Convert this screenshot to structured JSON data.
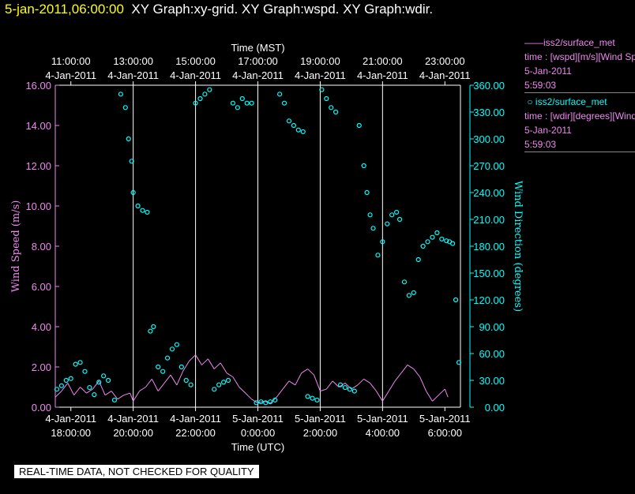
{
  "header": {
    "date_time": "5-jan-2011,06:00:00",
    "graph_titles": "XY Graph:xy-grid.  XY Graph:wspd.  XY Graph:wdir."
  },
  "legend": {
    "wspd": {
      "name": "iss2/surface_met",
      "desc": "time : [wspd][m/s][Wind Speed]",
      "date": "5-Jan-2011",
      "time": "5:59:03",
      "color": "#ee88ee"
    },
    "wdir": {
      "name": "iss2/surface_met",
      "desc": "time : [wdir][degrees][Wind Direction]",
      "date": "5-Jan-2011",
      "time": "5:59:03",
      "color": "#00ffff"
    }
  },
  "footer": {
    "qc_note": "REAL-TIME DATA, NOT CHECKED FOR QUALITY"
  },
  "colors": {
    "background": "#000000",
    "axis": "#ffffff",
    "wspd": "#ee88ee",
    "wdir": "#00ffff",
    "grid": "#ffffff",
    "header_date": "#ffff00"
  },
  "chart_data": {
    "type": "line",
    "top_axis_title": "Time (MST)",
    "bottom_axis_title": "Time (UTC)",
    "y_left_label": "Wind Speed (m/s)",
    "y_right_label": "Wind Direction (degrees)",
    "x_range_utc_hours": [
      17.5,
      30.5
    ],
    "bottom_ticks": [
      {
        "date": "4-Jan-2011",
        "time": "18:00:00",
        "h": 18
      },
      {
        "date": "4-Jan-2011",
        "time": "20:00:00",
        "h": 20
      },
      {
        "date": "4-Jan-2011",
        "time": "22:00:00",
        "h": 22
      },
      {
        "date": "5-Jan-2011",
        "time": "0:00:00",
        "h": 24
      },
      {
        "date": "5-Jan-2011",
        "time": "2:00:00",
        "h": 26
      },
      {
        "date": "5-Jan-2011",
        "time": "4:00:00",
        "h": 28
      },
      {
        "date": "5-Jan-2011",
        "time": "6:00:00",
        "h": 30
      }
    ],
    "top_ticks": [
      {
        "time": "11:00:00",
        "date": "4-Jan-2011",
        "h": 18
      },
      {
        "time": "13:00:00",
        "date": "4-Jan-2011",
        "h": 20
      },
      {
        "time": "15:00:00",
        "date": "4-Jan-2011",
        "h": 22
      },
      {
        "time": "17:00:00",
        "date": "4-Jan-2011",
        "h": 24
      },
      {
        "time": "19:00:00",
        "date": "4-Jan-2011",
        "h": 26
      },
      {
        "time": "21:00:00",
        "date": "4-Jan-2011",
        "h": 28
      },
      {
        "time": "23:00:00",
        "date": "4-Jan-2011",
        "h": 30
      }
    ],
    "y_left_ticks": [
      "0.00",
      "2.00",
      "4.00",
      "6.00",
      "8.00",
      "10.00",
      "12.00",
      "14.00",
      "16.00"
    ],
    "y_right_ticks": [
      "0.00",
      "30.00",
      "60.00",
      "90.00",
      "120.00",
      "150.00",
      "180.00",
      "210.00",
      "240.00",
      "270.00",
      "300.00",
      "330.00",
      "360.00"
    ],
    "y_left_range": [
      0,
      16
    ],
    "y_right_range": [
      0,
      360
    ],
    "grid_vertical_hours": [
      20,
      22,
      24,
      26,
      28
    ],
    "series": [
      {
        "name": "iss2/surface_met wspd",
        "axis": "left",
        "style": "line",
        "points": [
          [
            17.5,
            0.5
          ],
          [
            17.7,
            0.8
          ],
          [
            17.9,
            1.2
          ],
          [
            18.1,
            0.6
          ],
          [
            18.3,
            1.0
          ],
          [
            18.5,
            0.7
          ],
          [
            18.7,
            0.9
          ],
          [
            18.9,
            1.3
          ],
          [
            19.1,
            0.6
          ],
          [
            19.3,
            0.8
          ],
          [
            19.5,
            0.4
          ],
          [
            19.7,
            0.6
          ],
          [
            19.9,
            0.7
          ],
          [
            20.0,
            0.3
          ],
          [
            20.2,
            0.8
          ],
          [
            20.4,
            1.0
          ],
          [
            20.6,
            1.4
          ],
          [
            20.8,
            0.8
          ],
          [
            21.0,
            1.2
          ],
          [
            21.2,
            1.6
          ],
          [
            21.4,
            1.1
          ],
          [
            21.6,
            1.8
          ],
          [
            21.8,
            2.3
          ],
          [
            22.0,
            2.6
          ],
          [
            22.2,
            2.1
          ],
          [
            22.4,
            2.4
          ],
          [
            22.6,
            1.9
          ],
          [
            22.8,
            2.2
          ],
          [
            23.0,
            1.7
          ],
          [
            23.2,
            1.5
          ],
          [
            23.4,
            1.0
          ],
          [
            23.6,
            0.7
          ],
          [
            23.8,
            0.4
          ],
          [
            24.0,
            0.2
          ],
          [
            24.2,
            0.3
          ],
          [
            24.4,
            0.2
          ],
          [
            24.6,
            0.5
          ],
          [
            24.8,
            0.9
          ],
          [
            25.0,
            1.3
          ],
          [
            25.2,
            1.1
          ],
          [
            25.4,
            1.7
          ],
          [
            25.6,
            1.9
          ],
          [
            25.8,
            1.6
          ],
          [
            26.0,
            0.8
          ],
          [
            26.2,
            0.9
          ],
          [
            26.4,
            1.3
          ],
          [
            26.6,
            1.0
          ],
          [
            26.8,
            1.2
          ],
          [
            27.0,
            0.9
          ],
          [
            27.2,
            1.1
          ],
          [
            27.4,
            1.4
          ],
          [
            27.6,
            1.2
          ],
          [
            27.8,
            0.8
          ],
          [
            28.0,
            0.3
          ],
          [
            28.2,
            0.8
          ],
          [
            28.4,
            1.3
          ],
          [
            28.6,
            1.7
          ],
          [
            28.8,
            2.1
          ],
          [
            29.0,
            1.9
          ],
          [
            29.2,
            1.5
          ],
          [
            29.4,
            0.8
          ],
          [
            29.6,
            0.3
          ],
          [
            29.8,
            0.6
          ],
          [
            30.0,
            0.9
          ],
          [
            30.1,
            0.5
          ]
        ]
      },
      {
        "name": "iss2/surface_met wdir",
        "axis": "right",
        "style": "points",
        "points": [
          [
            17.55,
            20
          ],
          [
            17.7,
            24
          ],
          [
            17.85,
            30
          ],
          [
            18.0,
            32
          ],
          [
            18.15,
            48
          ],
          [
            18.3,
            50
          ],
          [
            18.45,
            40
          ],
          [
            18.6,
            22
          ],
          [
            18.75,
            14
          ],
          [
            18.9,
            28
          ],
          [
            19.05,
            35
          ],
          [
            19.2,
            30
          ],
          [
            19.4,
            8
          ],
          [
            19.6,
            350
          ],
          [
            19.75,
            335
          ],
          [
            19.85,
            300
          ],
          [
            19.95,
            275
          ],
          [
            20.0,
            240
          ],
          [
            20.15,
            225
          ],
          [
            20.3,
            220
          ],
          [
            20.45,
            218
          ],
          [
            20.55,
            85
          ],
          [
            20.65,
            90
          ],
          [
            20.8,
            45
          ],
          [
            20.95,
            40
          ],
          [
            21.1,
            55
          ],
          [
            21.25,
            65
          ],
          [
            21.4,
            70
          ],
          [
            21.55,
            45
          ],
          [
            21.7,
            30
          ],
          [
            21.85,
            25
          ],
          [
            22.0,
            340
          ],
          [
            22.15,
            345
          ],
          [
            22.3,
            350
          ],
          [
            22.45,
            355
          ],
          [
            22.6,
            20
          ],
          [
            22.75,
            25
          ],
          [
            22.9,
            28
          ],
          [
            23.05,
            30
          ],
          [
            23.2,
            340
          ],
          [
            23.35,
            335
          ],
          [
            23.5,
            345
          ],
          [
            23.65,
            340
          ],
          [
            23.8,
            340
          ],
          [
            23.95,
            5
          ],
          [
            24.1,
            6
          ],
          [
            24.25,
            5
          ],
          [
            24.4,
            6
          ],
          [
            24.55,
            8
          ],
          [
            24.7,
            350
          ],
          [
            24.85,
            340
          ],
          [
            25.0,
            320
          ],
          [
            25.15,
            315
          ],
          [
            25.3,
            310
          ],
          [
            25.45,
            308
          ],
          [
            25.6,
            12
          ],
          [
            25.75,
            10
          ],
          [
            25.9,
            8
          ],
          [
            26.05,
            355
          ],
          [
            26.2,
            345
          ],
          [
            26.35,
            335
          ],
          [
            26.5,
            330
          ],
          [
            26.65,
            25
          ],
          [
            26.8,
            22
          ],
          [
            26.95,
            20
          ],
          [
            27.1,
            18
          ],
          [
            27.25,
            315
          ],
          [
            27.4,
            270
          ],
          [
            27.5,
            240
          ],
          [
            27.6,
            215
          ],
          [
            27.7,
            200
          ],
          [
            27.85,
            170
          ],
          [
            28.0,
            185
          ],
          [
            28.15,
            205
          ],
          [
            28.3,
            215
          ],
          [
            28.45,
            218
          ],
          [
            28.55,
            210
          ],
          [
            28.7,
            140
          ],
          [
            28.85,
            125
          ],
          [
            29.0,
            128
          ],
          [
            29.15,
            165
          ],
          [
            29.3,
            180
          ],
          [
            29.45,
            185
          ],
          [
            29.6,
            190
          ],
          [
            29.75,
            195
          ],
          [
            29.9,
            188
          ],
          [
            30.05,
            186
          ],
          [
            30.15,
            185
          ],
          [
            30.25,
            183
          ],
          [
            30.35,
            120
          ],
          [
            30.45,
            50
          ]
        ]
      }
    ]
  }
}
